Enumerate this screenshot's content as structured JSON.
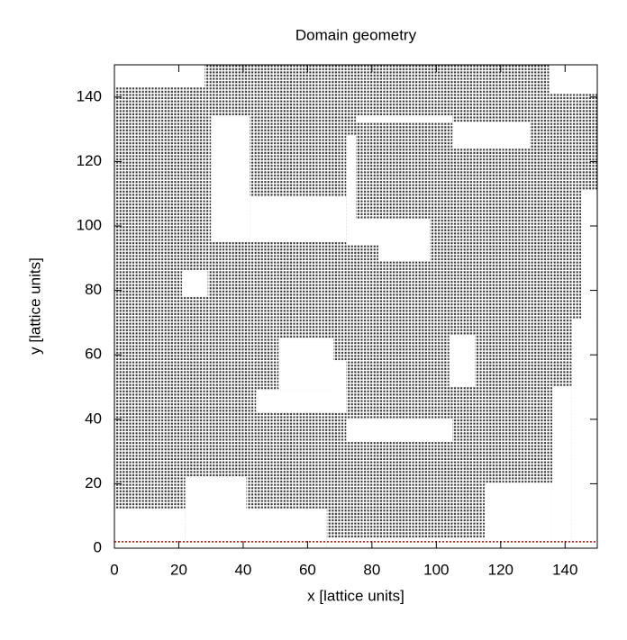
{
  "chart_data": {
    "type": "geometry",
    "title": "Domain geometry",
    "x_label": "x [lattice units]",
    "y_label": "y [lattice units]",
    "xlim": [
      0,
      150
    ],
    "ylim": [
      0,
      150
    ],
    "xticks": [
      0,
      20,
      40,
      60,
      80,
      100,
      120,
      140
    ],
    "yticks": [
      0,
      20,
      40,
      60,
      80,
      100,
      120,
      140
    ],
    "solid_color": "#333333",
    "void_regions": [
      [
        0,
        143,
        28,
        150
      ],
      [
        135,
        141,
        150,
        150
      ],
      [
        30,
        95,
        42,
        134
      ],
      [
        42,
        95,
        72,
        109
      ],
      [
        72,
        94,
        98,
        102
      ],
      [
        82,
        89,
        98,
        94
      ],
      [
        72,
        102,
        75,
        128
      ],
      [
        75,
        132,
        105,
        134
      ],
      [
        105,
        124,
        129,
        132
      ],
      [
        145,
        71,
        150,
        111
      ],
      [
        142,
        0,
        150,
        71
      ],
      [
        21,
        78,
        29,
        86
      ],
      [
        51,
        49,
        68,
        65
      ],
      [
        44,
        42,
        72,
        49
      ],
      [
        68,
        42,
        72,
        58
      ],
      [
        72,
        33,
        105,
        40
      ],
      [
        104,
        50,
        112,
        66
      ],
      [
        0,
        0,
        22,
        12
      ],
      [
        22,
        0,
        41,
        22
      ],
      [
        41,
        0,
        66,
        12
      ],
      [
        66,
        0,
        115,
        3
      ],
      [
        115,
        0,
        136,
        20
      ],
      [
        136,
        0,
        142,
        50
      ]
    ],
    "line_y": 2,
    "line_color": "#e00000"
  }
}
